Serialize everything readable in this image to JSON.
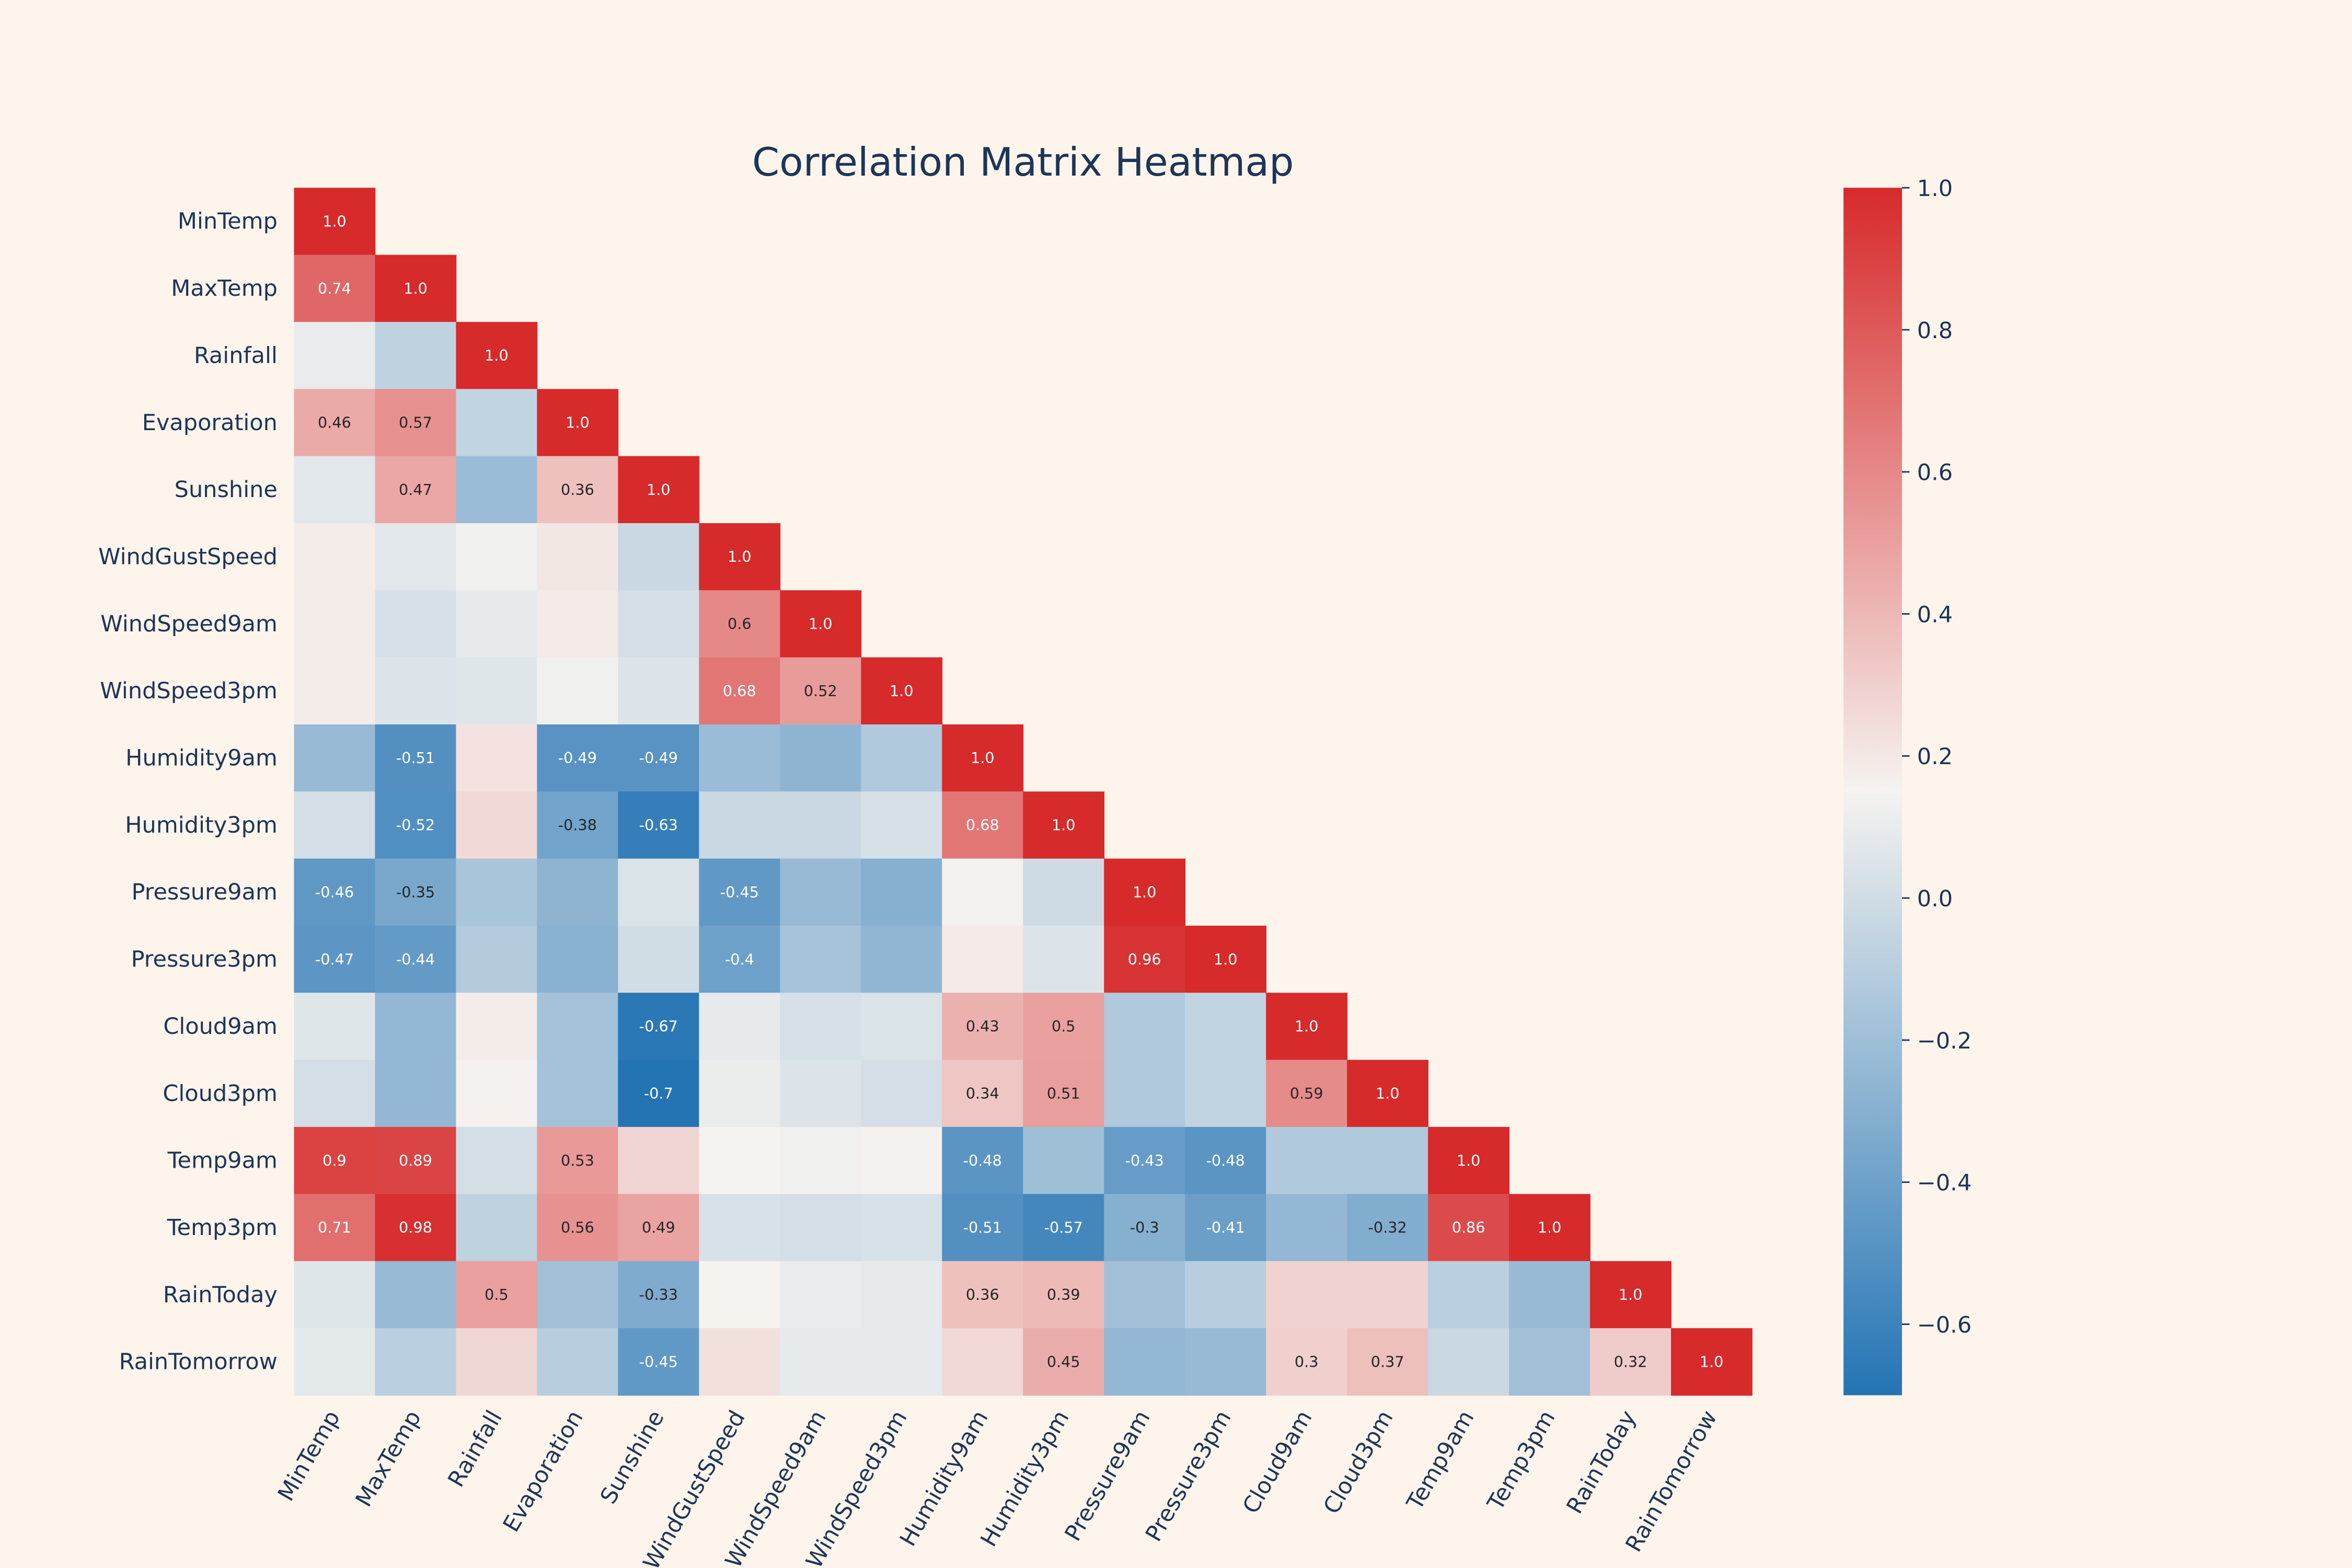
{
  "chart_data": {
    "type": "heatmap",
    "title": "Correlation Matrix Heatmap",
    "categories": [
      "MinTemp",
      "MaxTemp",
      "Rainfall",
      "Evaporation",
      "Sunshine",
      "WindGustSpeed",
      "WindSpeed9am",
      "WindSpeed3pm",
      "Humidity9am",
      "Humidity3pm",
      "Pressure9am",
      "Pressure3pm",
      "Cloud9am",
      "Cloud3pm",
      "Temp9am",
      "Temp3pm",
      "RainToday",
      "RainTomorrow"
    ],
    "values": [
      [
        1
      ],
      [
        0.74,
        1
      ],
      [
        0.1,
        -0.07,
        1
      ],
      [
        0.46,
        0.57,
        -0.06,
        1
      ],
      [
        0.07,
        0.47,
        -0.22,
        0.36,
        1
      ],
      [
        0.18,
        0.07,
        0.13,
        0.2,
        -0.03,
        1
      ],
      [
        0.18,
        0.02,
        0.09,
        0.19,
        0.01,
        0.6,
        1
      ],
      [
        0.18,
        0.05,
        0.06,
        0.13,
        0.05,
        0.68,
        0.52,
        1
      ],
      [
        -0.23,
        -0.51,
        0.22,
        -0.49,
        -0.49,
        -0.22,
        -0.27,
        -0.13,
        1
      ],
      [
        0.01,
        -0.52,
        0.26,
        -0.38,
        -0.63,
        -0.03,
        -0.03,
        0.02,
        0.68,
        1
      ],
      [
        -0.46,
        -0.35,
        -0.16,
        -0.27,
        0.04,
        -0.45,
        -0.23,
        -0.3,
        0.14,
        -0.01,
        1
      ],
      [
        -0.47,
        -0.44,
        -0.12,
        -0.29,
        0.0,
        -0.4,
        -0.17,
        -0.26,
        0.19,
        0.05,
        0.96,
        1
      ],
      [
        0.06,
        -0.25,
        0.18,
        -0.18,
        -0.67,
        0.09,
        0.02,
        0.04,
        0.43,
        0.5,
        -0.13,
        -0.06,
        1
      ],
      [
        0.01,
        -0.25,
        0.16,
        -0.18,
        -0.7,
        0.11,
        0.05,
        0.01,
        0.34,
        0.51,
        -0.13,
        -0.06,
        0.59,
        1
      ],
      [
        0.9,
        0.89,
        0.01,
        0.53,
        0.28,
        0.15,
        0.13,
        0.16,
        -0.48,
        -0.2,
        -0.43,
        -0.48,
        -0.13,
        -0.13,
        1
      ],
      [
        0.71,
        0.98,
        -0.07,
        0.56,
        0.49,
        0.03,
        0.01,
        0.03,
        -0.51,
        -0.57,
        -0.3,
        -0.41,
        -0.25,
        -0.32,
        0.86,
        1
      ],
      [
        0.06,
        -0.23,
        0.5,
        -0.19,
        -0.33,
        0.15,
        0.1,
        0.09,
        0.36,
        0.39,
        -0.19,
        -0.1,
        0.29,
        0.29,
        -0.09,
        -0.23,
        1
      ],
      [
        0.08,
        -0.09,
        0.27,
        -0.1,
        -0.45,
        0.23,
        0.09,
        0.09,
        0.26,
        0.45,
        -0.25,
        -0.23,
        0.3,
        0.37,
        -0.03,
        -0.19,
        0.32,
        1
      ]
    ],
    "value_labels": [
      [
        "1.0"
      ],
      [
        "0.74",
        "1.0"
      ],
      [
        null,
        null,
        "1.0"
      ],
      [
        "0.46",
        "0.57",
        null,
        "1.0"
      ],
      [
        null,
        "0.47",
        null,
        "0.36",
        "1.0"
      ],
      [
        null,
        null,
        null,
        null,
        null,
        "1.0"
      ],
      [
        null,
        null,
        null,
        null,
        null,
        "0.6",
        "1.0"
      ],
      [
        null,
        null,
        null,
        null,
        null,
        "0.68",
        "0.52",
        "1.0"
      ],
      [
        null,
        "-0.51",
        null,
        "-0.49",
        "-0.49",
        null,
        null,
        null,
        "1.0"
      ],
      [
        null,
        "-0.52",
        null,
        "-0.38",
        "-0.63",
        null,
        null,
        null,
        "0.68",
        "1.0"
      ],
      [
        "-0.46",
        "-0.35",
        null,
        null,
        null,
        "-0.45",
        null,
        null,
        null,
        null,
        "1.0"
      ],
      [
        "-0.47",
        "-0.44",
        null,
        null,
        null,
        "-0.4",
        null,
        null,
        null,
        null,
        "0.96",
        "1.0"
      ],
      [
        null,
        null,
        null,
        null,
        "-0.67",
        null,
        null,
        null,
        "0.43",
        "0.5",
        null,
        null,
        "1.0"
      ],
      [
        null,
        null,
        null,
        null,
        "-0.7",
        null,
        null,
        null,
        "0.34",
        "0.51",
        null,
        null,
        "0.59",
        "1.0"
      ],
      [
        "0.9",
        "0.89",
        null,
        "0.53",
        null,
        null,
        null,
        null,
        "-0.48",
        null,
        "-0.43",
        "-0.48",
        null,
        null,
        "1.0"
      ],
      [
        "0.71",
        "0.98",
        null,
        "0.56",
        "0.49",
        null,
        null,
        null,
        "-0.51",
        "-0.57",
        "-0.3",
        "-0.41",
        null,
        "-0.32",
        "0.86",
        "1.0"
      ],
      [
        null,
        null,
        "0.5",
        null,
        "-0.33",
        null,
        null,
        null,
        "0.36",
        "0.39",
        null,
        null,
        null,
        null,
        null,
        null,
        "1.0"
      ],
      [
        null,
        null,
        null,
        null,
        "-0.45",
        null,
        null,
        null,
        null,
        "0.45",
        null,
        null,
        "0.3",
        "0.37",
        null,
        null,
        "0.32",
        "1.0"
      ]
    ],
    "colormap": [
      "#2474b4",
      "#f5f3f0",
      "#d72a2b"
    ],
    "ylim": [
      -0.7,
      1.0
    ],
    "yticks": [
      {
        "value": -0.6,
        "label": "−0.6"
      },
      {
        "value": -0.4,
        "label": "−0.4"
      },
      {
        "value": -0.2,
        "label": "−0.2"
      },
      {
        "value": 0,
        "label": "0.0"
      },
      {
        "value": 0.2,
        "label": "0.2"
      },
      {
        "value": 0.4,
        "label": "0.4"
      },
      {
        "value": 0.6,
        "label": "0.6"
      },
      {
        "value": 0.8,
        "label": "0.8"
      },
      {
        "value": 1.0,
        "label": "1.0"
      }
    ]
  }
}
